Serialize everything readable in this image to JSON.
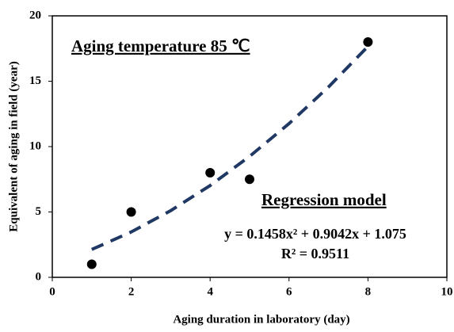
{
  "chart_data": {
    "type": "scatter",
    "xlabel": "Aging duration in laboratory (day)",
    "ylabel": "Equivalent of aging in field (year)",
    "x": [
      1,
      2,
      4,
      5,
      8
    ],
    "values": [
      1,
      5,
      8,
      7.5,
      18
    ],
    "color": "#000000",
    "trendline": {
      "color": "#1f3864",
      "x": [
        1,
        2,
        3,
        4,
        5,
        6,
        7,
        8
      ],
      "values": [
        2.13,
        3.47,
        5.1,
        7.02,
        9.25,
        11.76,
        14.56,
        17.66
      ]
    },
    "annotations": [
      "Aging temperature 85 ℃",
      "Regression model",
      "y = 0.1458x² + 0.9042x + 1.075",
      "R² = 0.9511"
    ],
    "xlim": [
      0,
      10
    ],
    "xticks": [
      0,
      2,
      4,
      6,
      8,
      10
    ],
    "ylim": [
      0,
      20
    ],
    "yticks": [
      0,
      5,
      10,
      15,
      20
    ],
    "grid": false
  }
}
